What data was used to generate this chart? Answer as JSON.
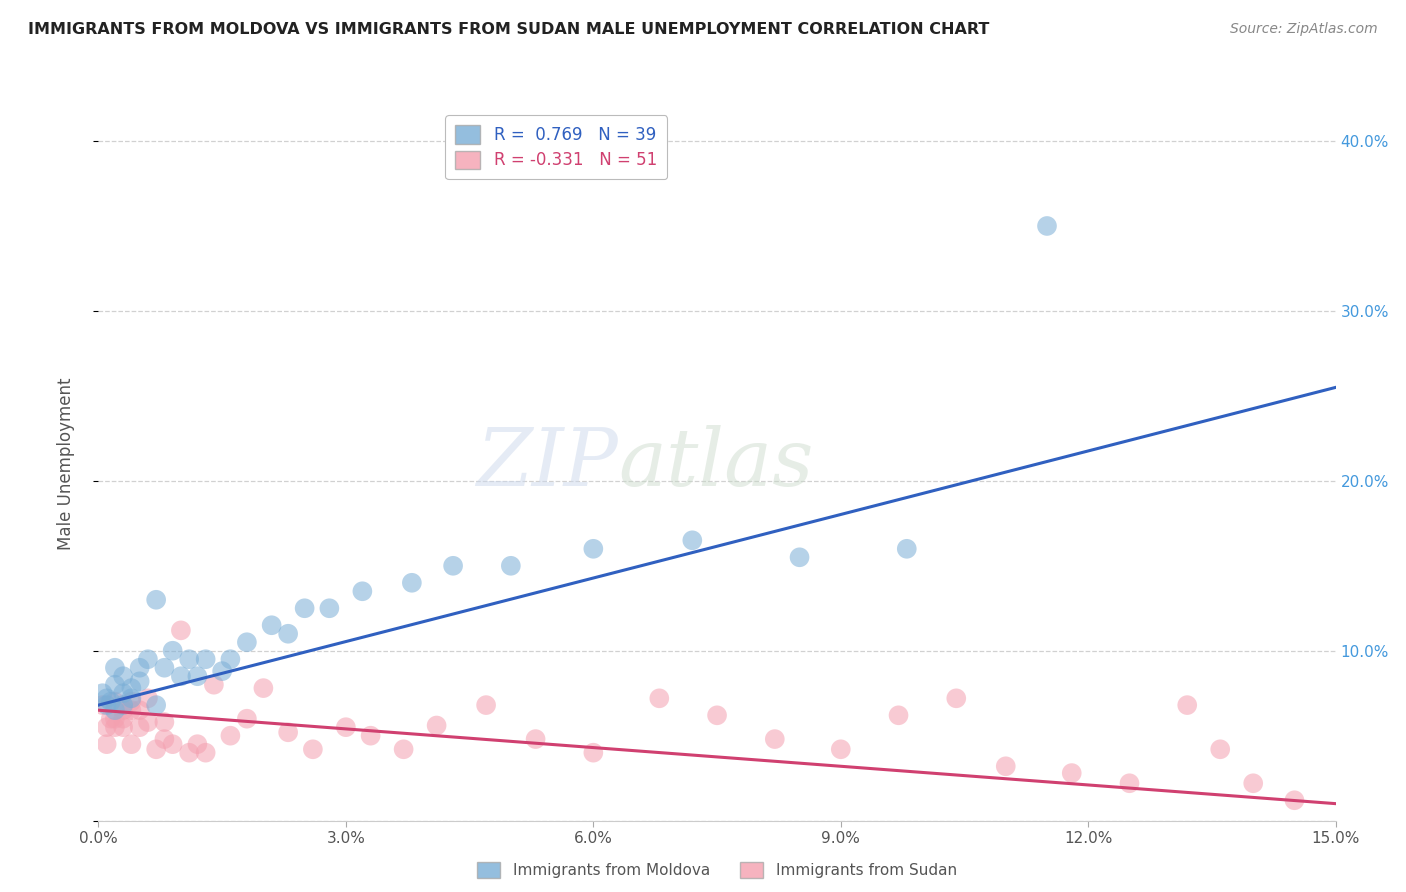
{
  "title": "IMMIGRANTS FROM MOLDOVA VS IMMIGRANTS FROM SUDAN MALE UNEMPLOYMENT CORRELATION CHART",
  "source": "Source: ZipAtlas.com",
  "ylabel": "Male Unemployment",
  "xlim": [
    0.0,
    0.15
  ],
  "ylim": [
    0.0,
    0.42
  ],
  "yticks_right": [
    0.0,
    0.1,
    0.2,
    0.3,
    0.4
  ],
  "ytick_labels_right": [
    "",
    "10.0%",
    "20.0%",
    "30.0%",
    "40.0%"
  ],
  "xticks": [
    0.0,
    0.03,
    0.06,
    0.09,
    0.12,
    0.15
  ],
  "xtick_labels": [
    "0.0%",
    "3.0%",
    "6.0%",
    "9.0%",
    "12.0%",
    "15.0%"
  ],
  "moldova_color": "#7aaed6",
  "sudan_color": "#f4a0b0",
  "moldova_line_color": "#3060c0",
  "sudan_line_color": "#d04070",
  "legend_moldova_label": "R =  0.769   N = 39",
  "legend_sudan_label": "R = -0.331   N = 51",
  "legend_moldova_text": "Immigrants from Moldova",
  "legend_sudan_text": "Immigrants from Sudan",
  "moldova_x": [
    0.0005,
    0.001,
    0.001,
    0.0015,
    0.002,
    0.002,
    0.002,
    0.003,
    0.003,
    0.003,
    0.004,
    0.004,
    0.005,
    0.005,
    0.006,
    0.007,
    0.007,
    0.008,
    0.009,
    0.01,
    0.011,
    0.012,
    0.013,
    0.015,
    0.016,
    0.018,
    0.021,
    0.023,
    0.025,
    0.028,
    0.032,
    0.038,
    0.043,
    0.05,
    0.06,
    0.072,
    0.085,
    0.098,
    0.115
  ],
  "moldova_y": [
    0.075,
    0.068,
    0.072,
    0.07,
    0.065,
    0.08,
    0.09,
    0.068,
    0.075,
    0.085,
    0.072,
    0.078,
    0.09,
    0.082,
    0.095,
    0.068,
    0.13,
    0.09,
    0.1,
    0.085,
    0.095,
    0.085,
    0.095,
    0.088,
    0.095,
    0.105,
    0.115,
    0.11,
    0.125,
    0.125,
    0.135,
    0.14,
    0.15,
    0.15,
    0.16,
    0.165,
    0.155,
    0.16,
    0.35
  ],
  "sudan_x": [
    0.0005,
    0.001,
    0.001,
    0.0015,
    0.002,
    0.002,
    0.002,
    0.003,
    0.003,
    0.003,
    0.004,
    0.004,
    0.004,
    0.005,
    0.005,
    0.006,
    0.006,
    0.007,
    0.008,
    0.008,
    0.009,
    0.01,
    0.011,
    0.012,
    0.013,
    0.014,
    0.016,
    0.018,
    0.02,
    0.023,
    0.026,
    0.03,
    0.033,
    0.037,
    0.041,
    0.047,
    0.053,
    0.06,
    0.068,
    0.075,
    0.082,
    0.09,
    0.097,
    0.104,
    0.11,
    0.118,
    0.125,
    0.132,
    0.136,
    0.14,
    0.145
  ],
  "sudan_y": [
    0.068,
    0.055,
    0.045,
    0.06,
    0.055,
    0.06,
    0.07,
    0.06,
    0.065,
    0.055,
    0.065,
    0.045,
    0.07,
    0.055,
    0.065,
    0.058,
    0.072,
    0.042,
    0.048,
    0.058,
    0.045,
    0.112,
    0.04,
    0.045,
    0.04,
    0.08,
    0.05,
    0.06,
    0.078,
    0.052,
    0.042,
    0.055,
    0.05,
    0.042,
    0.056,
    0.068,
    0.048,
    0.04,
    0.072,
    0.062,
    0.048,
    0.042,
    0.062,
    0.072,
    0.032,
    0.028,
    0.022,
    0.068,
    0.042,
    0.022,
    0.012
  ],
  "moldova_line_x0": 0.0,
  "moldova_line_y0": 0.068,
  "moldova_line_x1": 0.15,
  "moldova_line_y1": 0.255,
  "sudan_line_x0": 0.0,
  "sudan_line_y0": 0.065,
  "sudan_line_x1": 0.15,
  "sudan_line_y1": 0.01,
  "watermark_zip": "ZIP",
  "watermark_atlas": "atlas",
  "background_color": "#ffffff",
  "grid_color": "#cccccc"
}
